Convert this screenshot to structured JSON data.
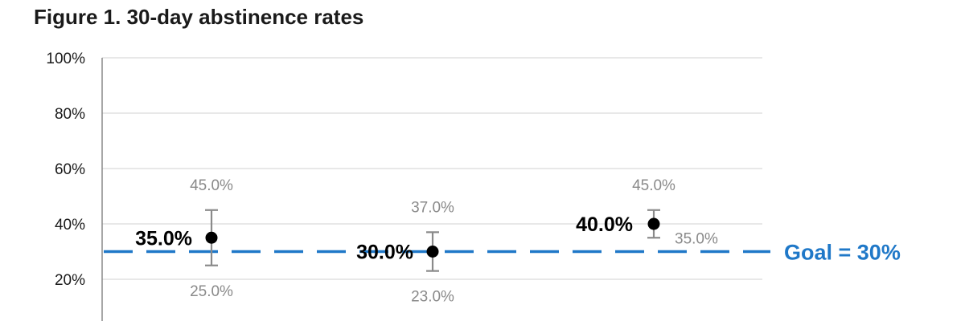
{
  "chart_data": {
    "type": "scatter",
    "title": "Figure 1. 30-day abstinence rates",
    "xlabel": "",
    "ylabel": "",
    "ylim": [
      0,
      100
    ],
    "y_ticks": [
      "100%",
      "80%",
      "60%",
      "40%",
      "20%"
    ],
    "grid": true,
    "points": [
      {
        "value": 35.0,
        "label": "35.0%",
        "upper": 45.0,
        "upper_label": "45.0%",
        "lower": 25.0,
        "lower_label": "25.0%"
      },
      {
        "value": 30.0,
        "label": "30.0%",
        "upper": 37.0,
        "upper_label": "37.0%",
        "lower": 23.0,
        "lower_label": "23.0%"
      },
      {
        "value": 40.0,
        "label": "40.0%",
        "upper": 45.0,
        "upper_label": "45.0%",
        "lower": 35.0,
        "lower_label": "35.0%"
      }
    ],
    "goal": {
      "value": 30,
      "label": "Goal = 30%"
    },
    "colors": {
      "goal": "#1f78c8",
      "point": "#000000",
      "error_bar": "#8a8a8a",
      "grid": "#d9d9d9",
      "axis": "#8a8a8a"
    }
  }
}
